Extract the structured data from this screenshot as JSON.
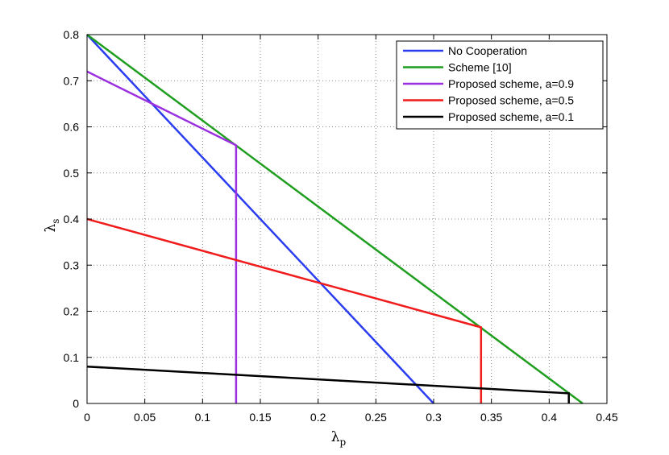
{
  "chart_data": {
    "type": "line",
    "title": "",
    "xlabel": "λ",
    "xlabel_sub": "p",
    "ylabel": "λ",
    "ylabel_sub": "s",
    "xlim": [
      0,
      0.45
    ],
    "ylim": [
      0,
      0.8
    ],
    "xticks": [
      0,
      0.05,
      0.1,
      0.15,
      0.2,
      0.25,
      0.3,
      0.35,
      0.4,
      0.45
    ],
    "xtick_labels": [
      "0",
      "0.05",
      "0.1",
      "0.15",
      "0.2",
      "0.25",
      "0.3",
      "0.35",
      "0.4",
      "0.45"
    ],
    "yticks": [
      0,
      0.1,
      0.2,
      0.3,
      0.4,
      0.5,
      0.6,
      0.7,
      0.8
    ],
    "ytick_labels": [
      "0",
      "0.1",
      "0.2",
      "0.3",
      "0.4",
      "0.5",
      "0.6",
      "0.7",
      "0.8"
    ],
    "grid": true,
    "legend_position": "top-right",
    "series": [
      {
        "name": "No Cooperation",
        "color": "#2a3df0",
        "x": [
          0,
          0.3
        ],
        "y": [
          0.8,
          0
        ]
      },
      {
        "name": "Scheme [10]",
        "color": "#1f9e1f",
        "x": [
          0,
          0.429
        ],
        "y": [
          0.8,
          0
        ]
      },
      {
        "name": "Proposed scheme, a=0.9",
        "color": "#9b30e0",
        "x": [
          0,
          0.129,
          0.129
        ],
        "y": [
          0.72,
          0.56,
          0
        ]
      },
      {
        "name": "Proposed scheme, a=0.5",
        "color": "#f01c1c",
        "x": [
          0,
          0.341,
          0.341
        ],
        "y": [
          0.4,
          0.165,
          0
        ]
      },
      {
        "name": "Proposed scheme, a=0.1",
        "color": "#000000",
        "x": [
          0,
          0.417,
          0.417
        ],
        "y": [
          0.08,
          0.022,
          0
        ]
      }
    ]
  }
}
